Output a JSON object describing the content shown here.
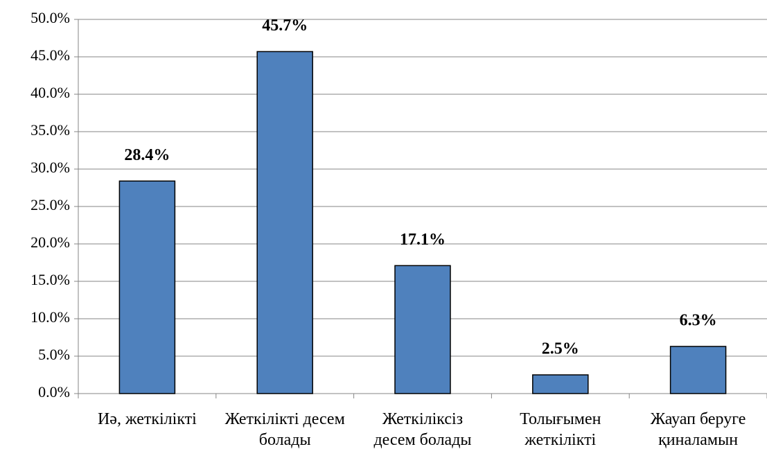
{
  "chart_data": {
    "type": "bar",
    "categories": [
      "Иә, жеткілікті",
      "Жеткілікті десем болады",
      "Жеткіліксіз десем болады",
      "Толығымен жеткілікті",
      "Жауап беруге қиналамын"
    ],
    "values": [
      28.4,
      45.7,
      17.1,
      2.5,
      6.3
    ],
    "value_labels": [
      "28.4%",
      "45.7%",
      "17.1%",
      "2.5%",
      "6.3%"
    ],
    "color": "#4f81bd",
    "ylim": [
      0,
      50
    ],
    "yticks": [
      {
        "value": 0,
        "label": "0.0%"
      },
      {
        "value": 5,
        "label": "5.0%"
      },
      {
        "value": 10,
        "label": "10.0%"
      },
      {
        "value": 15,
        "label": "15.0%"
      },
      {
        "value": 20,
        "label": "20.0%"
      },
      {
        "value": 25,
        "label": "25.0%"
      },
      {
        "value": 30,
        "label": "30.0%"
      },
      {
        "value": 35,
        "label": "35.0%"
      },
      {
        "value": 40,
        "label": "40.0%"
      },
      {
        "value": 45,
        "label": "45.0%"
      },
      {
        "value": 50,
        "label": "50.0%"
      }
    ],
    "grid": true
  }
}
